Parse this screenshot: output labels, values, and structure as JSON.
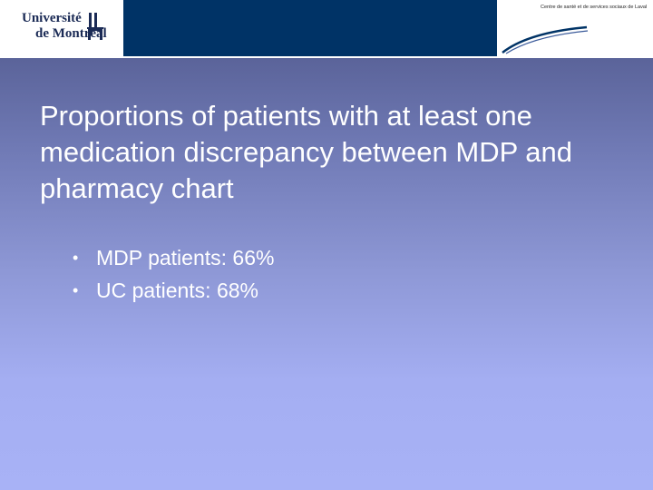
{
  "header": {
    "university_logo": {
      "line1": "Université",
      "line2": "de Montréal"
    },
    "partner_logo": {
      "text": "Centre de santé et de services sociaux de Laval"
    }
  },
  "slide": {
    "title": "Proportions of patients with at least one medication discrepancy between MDP and pharmacy chart",
    "bullets": [
      "MDP patients: 66%",
      "UC patients: 68%"
    ]
  },
  "colors": {
    "navy_band": "#003366",
    "background_top": "#4d5588",
    "background_bottom": "#a8b2f6",
    "text": "#ffffff"
  }
}
